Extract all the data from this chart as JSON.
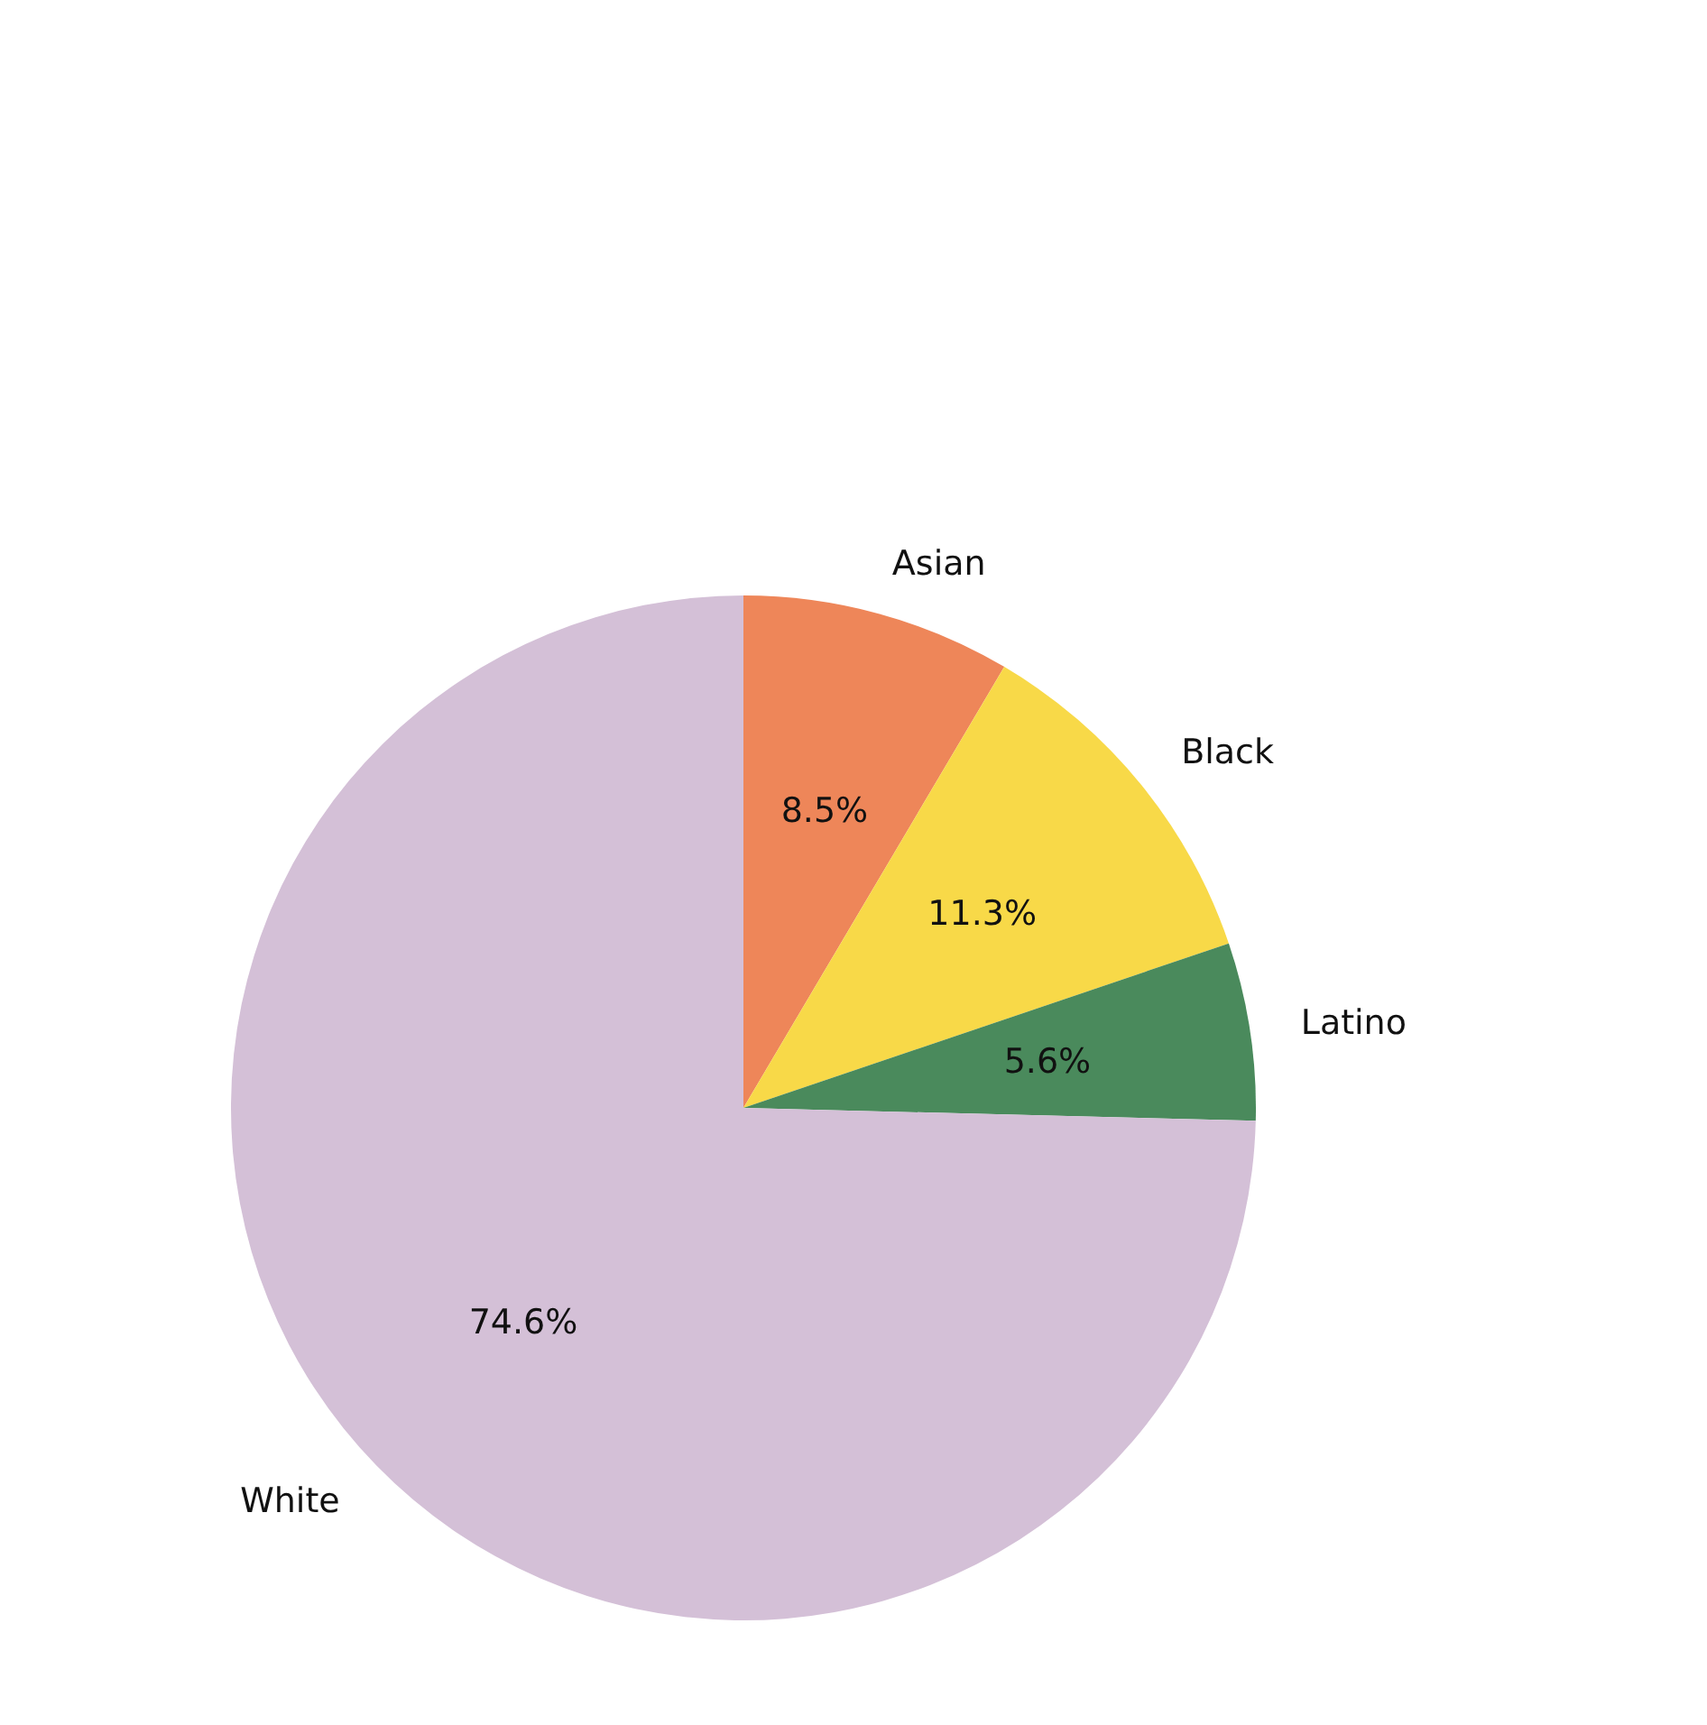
{
  "chart_data": {
    "type": "pie",
    "categories": [
      "Asian",
      "Black",
      "Latino",
      "White"
    ],
    "values": [
      8.5,
      11.3,
      5.6,
      74.6
    ],
    "colors": [
      "#ee8659",
      "#f8d948",
      "#4a8a5c",
      "#d4c0d7"
    ],
    "value_labels": [
      "8.5%",
      "11.3%",
      "5.6%",
      "74.6%"
    ]
  }
}
